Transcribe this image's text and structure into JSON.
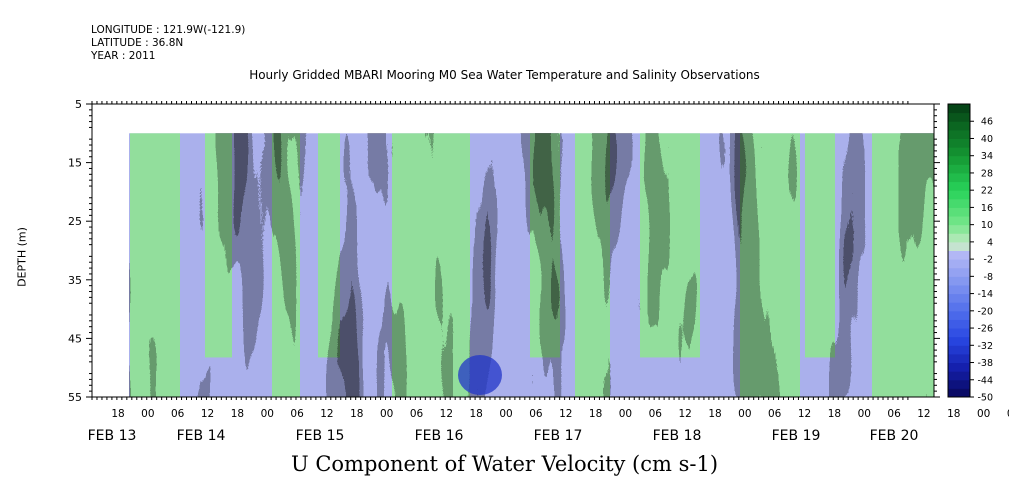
{
  "header": {
    "longitude": "LONGITUDE : 121.9W(-121.9)",
    "latitude": "LATITUDE : 36.8N",
    "year": "YEAR : 2011"
  },
  "chart_data": {
    "type": "heatmap",
    "title": "Hourly Gridded MBARI Mooring M0 Sea Water Temperature and Salinity Observations",
    "xlabel": "U Component of Water Velocity (cm s-1)",
    "ylabel": "DEPTH (m)",
    "y_axis": {
      "range": [
        5,
        55
      ],
      "inverted": true,
      "ticks": [
        5,
        15,
        25,
        35,
        45,
        55
      ]
    },
    "x_axis": {
      "hour_ticks": [
        "18",
        "00",
        "06",
        "12",
        "18",
        "00",
        "06",
        "12",
        "18",
        "00",
        "06",
        "12",
        "18",
        "00",
        "06",
        "12",
        "18",
        "00",
        "06",
        "12",
        "18",
        "00",
        "06",
        "12",
        "18",
        "00",
        "06",
        "12",
        "18",
        "00",
        "06",
        "12"
      ],
      "day_labels": [
        "FEB 13",
        "FEB 14",
        "FEB 15",
        "FEB 16",
        "FEB 17",
        "FEB 18",
        "FEB 19",
        "FEB 20"
      ]
    },
    "data_extent": {
      "depth_min": 10,
      "depth_max": 55
    },
    "colorbar": {
      "ticks": [
        46,
        40,
        34,
        28,
        22,
        16,
        10,
        4,
        -2,
        -8,
        -14,
        -20,
        -26,
        -32,
        -38,
        -44,
        -50
      ],
      "range": [
        -50,
        52
      ]
    }
  }
}
